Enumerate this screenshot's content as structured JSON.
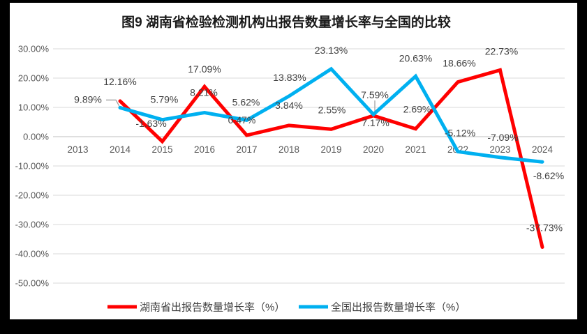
{
  "chart_data": {
    "type": "line",
    "title": "图9 湖南省检验检测机构出报告数量增长率与全国的比较",
    "categories": [
      "2013",
      "2014",
      "2015",
      "2016",
      "2017",
      "2018",
      "2019",
      "2020",
      "2021",
      "2022",
      "2023",
      "2024"
    ],
    "y_axis": {
      "min": -50,
      "max": 30,
      "step": 10,
      "tick_labels": [
        "30.00%",
        "20.00%",
        "10.00%",
        "0.00%",
        "-10.00%",
        "-20.00%",
        "-30.00%",
        "-40.00%",
        "-50.00%"
      ]
    },
    "grid": true,
    "legend_position": "bottom",
    "series": [
      {
        "name": "湖南省出报告数量增长率（%）",
        "color": "#FF0000",
        "values": [
          null,
          12.16,
          -1.63,
          17.09,
          0.47,
          3.84,
          2.55,
          7.17,
          2.69,
          18.66,
          22.73,
          -37.73
        ],
        "labels": [
          null,
          "12.16%",
          "-1.63%",
          "17.09%",
          "0.47%",
          "3.84%",
          "2.55%",
          "7.17%",
          "2.69%",
          "18.66%",
          "22.73%",
          "-37.73%"
        ],
        "label_offsets": [
          null,
          [
            0,
            -28
          ],
          [
            -16,
            -26
          ],
          [
            0,
            -25
          ],
          [
            -7,
            -22
          ],
          [
            0,
            -29
          ],
          [
            1,
            -28
          ],
          [
            3,
            10
          ],
          [
            2,
            -28
          ],
          [
            2,
            -27
          ],
          [
            2,
            -27
          ],
          [
            3,
            -28
          ]
        ]
      },
      {
        "name": "全国出报告数量增长率（%）",
        "color": "#00B0F0",
        "values": [
          null,
          9.89,
          5.79,
          8.21,
          5.62,
          13.83,
          23.13,
          7.59,
          20.63,
          -5.12,
          -7.09,
          -8.62
        ],
        "labels": [
          null,
          "9.89%",
          "5.79%",
          "8.21%",
          "5.62%",
          "13.83%",
          "23.13%",
          "7.59%",
          "20.63%",
          "-5.12%",
          "-7.09%",
          "-8.62%"
        ],
        "label_offsets": [
          null,
          [
            -46,
            -12
          ],
          [
            3,
            -29
          ],
          [
            -1,
            -29
          ],
          [
            -1,
            -26
          ],
          [
            1,
            -27
          ],
          [
            0,
            -27
          ],
          [
            2,
            -28
          ],
          [
            0,
            -26
          ],
          [
            3,
            -27
          ],
          [
            4,
            -29
          ],
          [
            9,
            20
          ]
        ],
        "leaders": [
          {
            "index": 1,
            "shape": "elbow"
          },
          {
            "index": 7,
            "shape": "vertical"
          }
        ]
      }
    ],
    "colors": {
      "gridline": "#D9D9D9",
      "axis_line": "#BFBFBF",
      "tick_text": "#595959",
      "data_label": "#404040",
      "leader": "#A0A0A0",
      "title_text": "#1A1A1A",
      "frame": "#000000",
      "canvas": "#FFFFFF"
    }
  }
}
